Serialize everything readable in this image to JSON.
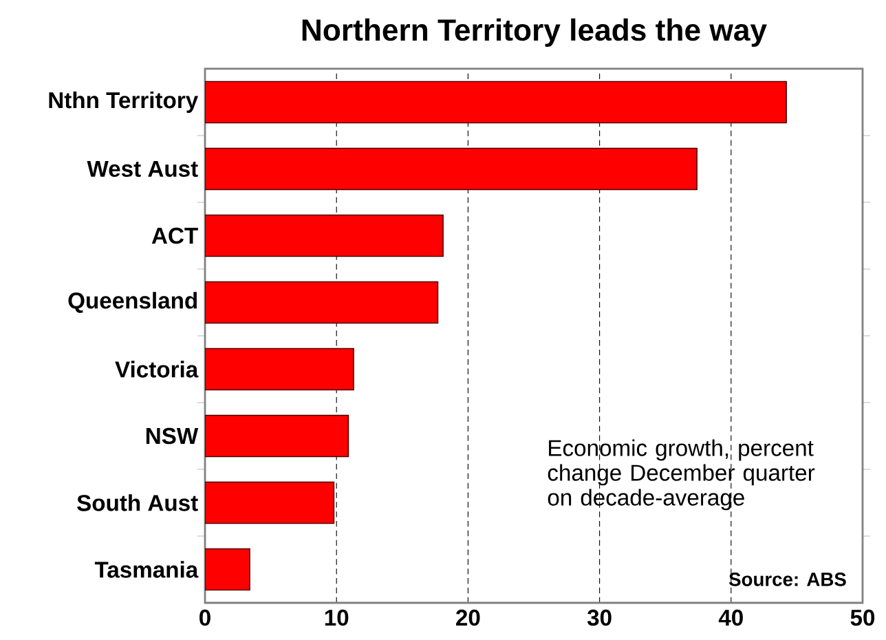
{
  "chart_data": {
    "type": "bar",
    "orientation": "horizontal",
    "title": "Northern Territory leads the way",
    "categories": [
      "Nthn Territory",
      "West Aust",
      "ACT",
      "Queensland",
      "Victoria",
      "NSW",
      "South Aust",
      "Tasmania"
    ],
    "values": [
      44.2,
      37.4,
      18.1,
      17.7,
      11.3,
      10.9,
      9.8,
      3.4
    ],
    "color": "#ff0000",
    "xlim": [
      0,
      50
    ],
    "xticks": [
      0,
      10,
      20,
      30,
      40,
      50
    ],
    "grid": "x",
    "legend": false,
    "annotations": [
      "Economic growth, percent change December quarter on decade-average",
      "Source: ABS"
    ]
  }
}
